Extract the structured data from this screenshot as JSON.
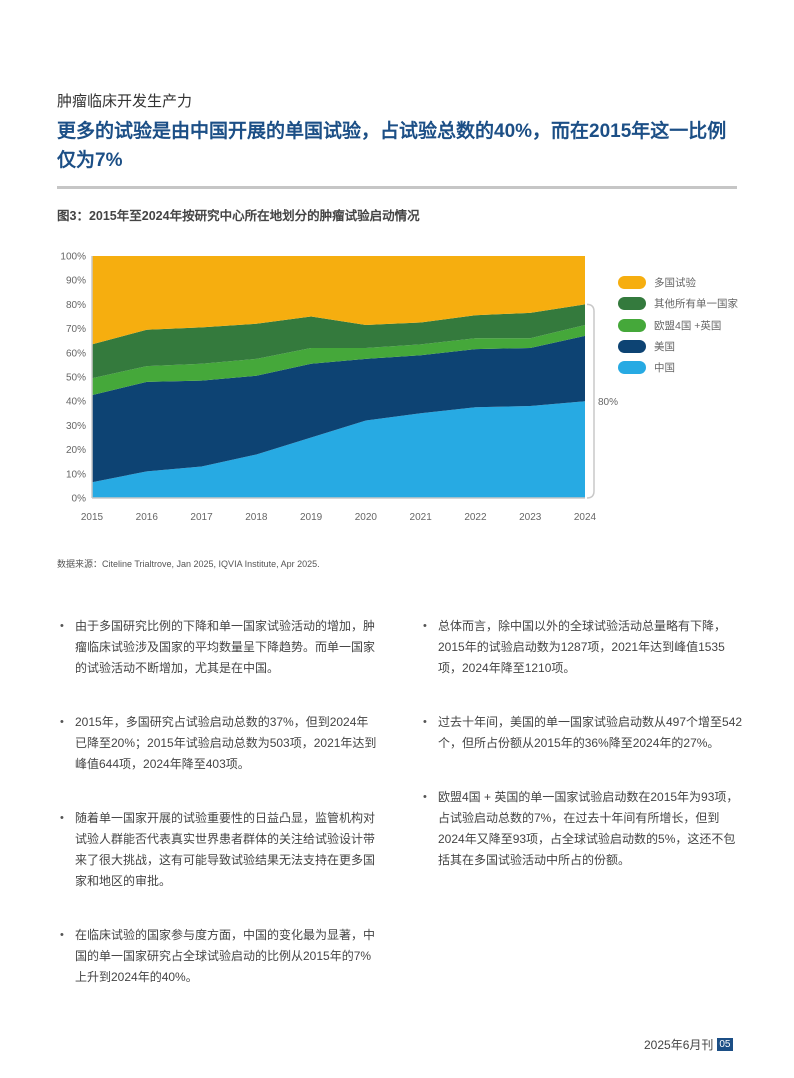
{
  "section_label": "肿瘤临床开发生产力",
  "headline": "更多的试验是由中国开展的单国试验，占试验总数的40%，而在2015年这一比例仅为7%",
  "figure_title": "图3：2015年至2024年按研究中心所在地划分的肿瘤试验启动情况",
  "chart_data": {
    "type": "area",
    "stacked": true,
    "normalized": true,
    "x": [
      "2015",
      "2016",
      "2017",
      "2018",
      "2019",
      "2020",
      "2021",
      "2022",
      "2023",
      "2024"
    ],
    "y_ticks": [
      "0%",
      "10%",
      "20%",
      "30%",
      "40%",
      "50%",
      "60%",
      "70%",
      "80%",
      "90%",
      "100%"
    ],
    "ylim": [
      0,
      100
    ],
    "grid": false,
    "legend_position": "right",
    "series": [
      {
        "name": "中国",
        "color": "#27aae3",
        "values": [
          6.5,
          11,
          13,
          18,
          25,
          32,
          35,
          37.5,
          38,
          40
        ]
      },
      {
        "name": "美国",
        "color": "#0d4373",
        "values": [
          36,
          37,
          35.5,
          32.5,
          30.5,
          25.5,
          24,
          24,
          24,
          27
        ]
      },
      {
        "name": "欧盟4国 +英国",
        "color": "#45a83a",
        "values": [
          7,
          6.5,
          7,
          7,
          6.5,
          4.5,
          4.5,
          4.5,
          4,
          4.5
        ]
      },
      {
        "name": "其他所有单一国家",
        "color": "#347a3d",
        "values": [
          14,
          15,
          15,
          14.5,
          13,
          9.5,
          9,
          9.5,
          10.5,
          8.5
        ]
      },
      {
        "name": "多国试验",
        "color": "#f6ae0f",
        "values": [
          36.5,
          30.5,
          29.5,
          28,
          25,
          28.5,
          27.5,
          24.5,
          23.5,
          20
        ]
      }
    ],
    "legend_order": [
      "多国试验",
      "其他所有单一国家",
      "欧盟4国 +英国",
      "美国",
      "中国"
    ],
    "annotation": {
      "label": "80%",
      "bracket_range": [
        0,
        80
      ]
    }
  },
  "source": "数据来源：Citeline Trialtrove, Jan 2025, IQVIA Institute, Apr 2025.",
  "bullets_left": [
    "由于多国研究比例的下降和单一国家试验活动的增加，肿瘤临床试验涉及国家的平均数量呈下降趋势。而单一国家的试验活动不断增加，尤其是在中国。",
    "2015年，多国研究占试验启动总数的37%，但到2024年已降至20%；2015年试验启动总数为503项，2021年达到峰值644项，2024年降至403项。",
    "随着单一国家开展的试验重要性的日益凸显，监管机构对试验人群能否代表真实世界患者群体的关注给试验设计带来了很大挑战，这有可能导致试验结果无法支持在更多国家和地区的审批。",
    "在临床试验的国家参与度方面，中国的变化最为显著，中国的单一国家研究占全球试验启动的比例从2015年的7%上升到2024年的40%。"
  ],
  "bullets_right": [
    "总体而言，除中国以外的全球试验活动总量略有下降，2015年的试验启动数为1287项，2021年达到峰值1535项，2024年降至1210项。",
    "过去十年间，美国的单一国家试验启动数从497个增至542个，但所占份额从2015年的36%降至2024年的27%。",
    "欧盟4国 + 英国的单一国家试验启动数在2015年为93项，占试验启动总数的7%，在过去十年间有所增长，但到2024年又降至93项，占全球试验启动数的5%，这还不包括其在多国试验活动中所占的份额。"
  ],
  "bullet_char": "•",
  "footer": {
    "issue": "2025年6月刊",
    "page": "05"
  }
}
